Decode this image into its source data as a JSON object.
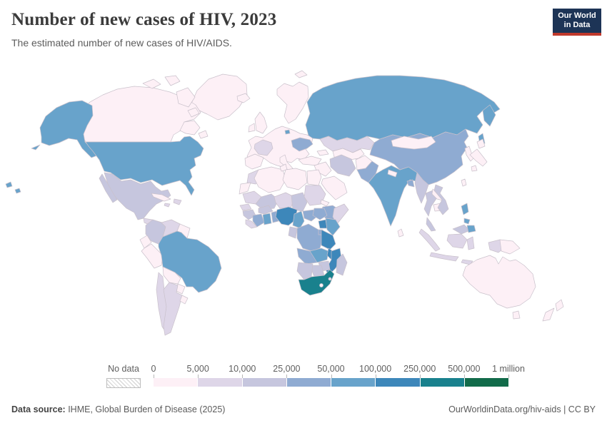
{
  "header": {
    "title": "Number of new cases of HIV, 2023",
    "subtitle": "The estimated number of new cases of HIV/AIDS.",
    "logo": {
      "line1": "Our World",
      "line2": "in Data",
      "bg_color": "#1d3456",
      "accent_color": "#c0392c"
    }
  },
  "legend": {
    "no_data_label": "No data",
    "tick_labels": [
      "0",
      "5,000",
      "10,000",
      "25,000",
      "50,000",
      "100,000",
      "250,000",
      "500,000",
      "1 million"
    ]
  },
  "footer": {
    "source_label": "Data source:",
    "source_text": " IHME, Global Burden of Disease (2025)",
    "link": "OurWorldinData.org/hiv-aids",
    "divider": " | ",
    "license": "CC BY"
  },
  "map": {
    "ocean_color": "#ffffff",
    "border_color": "#c9c1cb",
    "no_data_fill": "#ffffff"
  },
  "chart_data": {
    "type": "choropleth_map",
    "title": "Number of new cases of HIV, 2023",
    "subtitle": "The estimated number of new cases of HIV/AIDS.",
    "year": 2023,
    "unit": "new cases of HIV/AIDS",
    "legend_position": "bottom",
    "bins": [
      {
        "label": "0 – 5,000",
        "color": "#fdf0f6"
      },
      {
        "label": "5,000 – 10,000",
        "color": "#ded6e8"
      },
      {
        "label": "10,000 – 25,000",
        "color": "#c6c6de"
      },
      {
        "label": "25,000 – 50,000",
        "color": "#8fabd2"
      },
      {
        "label": "50,000 – 100,000",
        "color": "#68a3cb"
      },
      {
        "label": "100,000 – 250,000",
        "color": "#3d87ba"
      },
      {
        "label": "250,000 – 500,000",
        "color": "#19818d"
      },
      {
        "label": "500,000 – 1 million",
        "color": "#126b4a"
      }
    ],
    "countries": {
      "greenland": 0,
      "iceland": 0,
      "canada": 0,
      "usa": 4,
      "mexico": 2,
      "guatemala": 1,
      "honduras_nicaragua": 0,
      "costa_rica_panama": 0,
      "cuba": 0,
      "jamaica": 1,
      "hispaniola": 1,
      "colombia": 2,
      "venezuela": 1,
      "guyanas": 0,
      "ecuador": 0,
      "peru": 0,
      "brazil": 4,
      "bolivia": 0,
      "paraguay": 0,
      "chile": 1,
      "argentina": 1,
      "uruguay": 0,
      "scandinavia": 0,
      "uk": 0,
      "ireland": 0,
      "europe": 0,
      "iberia": 0,
      "italy": 0,
      "france": 1,
      "ukraine": 3,
      "russia": 4,
      "kazakhstan": 1,
      "central_asia": 0,
      "caucasus": 0,
      "turkey": 0,
      "middle_east": 0,
      "arabia": 0,
      "iran": 2,
      "afghanistan": 0,
      "pakistan": 3,
      "india": 4,
      "nepal": 0,
      "bangladesh": 3,
      "sri_lanka": 0,
      "china": 3,
      "mongolia": 0,
      "korea": 0,
      "japan": 0,
      "taiwan": 0,
      "myanmar": 2,
      "thailand": 2,
      "laos": 0,
      "cambodia": 0,
      "vietnam": 2,
      "malaysia": 2,
      "indonesia": 1,
      "west_papua": 1,
      "png": 0,
      "philippines": 4,
      "morocco": 1,
      "western_sahara": 0,
      "algeria": 0,
      "tunisia": 0,
      "libya": 0,
      "egypt": 0,
      "mauritania": 1,
      "mali": 2,
      "senegal": 1,
      "guinea": 2,
      "sierra_leone_liberia": 1,
      "cote_divoire": 3,
      "ghana": 4,
      "togo_benin": 3,
      "burkina_faso": 2,
      "niger": 1,
      "chad": 2,
      "sudan": 1,
      "eritrea": 0,
      "ethiopia": 3,
      "somalia": 1,
      "nigeria": 5,
      "cameroon": 4,
      "car": 3,
      "south_sudan": 3,
      "gabon_congo": 2,
      "drc": 3,
      "uganda": 5,
      "kenya": 4,
      "rwanda_burundi": 3,
      "tanzania": 5,
      "angola": 3,
      "zambia": 4,
      "malawi": 5,
      "mozambique": 5,
      "zimbabwe": 2,
      "botswana": 2,
      "namibia": 2,
      "south_africa": 6,
      "lesotho": 0,
      "eswatini": 1,
      "madagascar": 2,
      "svalbard": 0,
      "australia": 0,
      "tasmania": 0,
      "new_zealand": 0
    }
  }
}
